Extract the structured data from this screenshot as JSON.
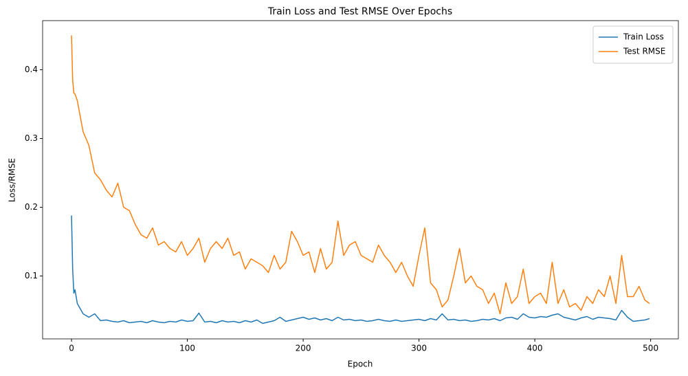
{
  "chart_data": {
    "type": "line",
    "title": "Train Loss and Test RMSE Over Epochs",
    "x_label": "Epoch",
    "y_label": "Loss/RMSE",
    "x": [
      0,
      1,
      2,
      3,
      5,
      10,
      15,
      20,
      25,
      30,
      35,
      40,
      45,
      50,
      55,
      60,
      65,
      70,
      75,
      80,
      85,
      90,
      95,
      100,
      105,
      110,
      115,
      120,
      125,
      130,
      135,
      140,
      145,
      150,
      155,
      160,
      165,
      170,
      175,
      180,
      185,
      190,
      195,
      200,
      205,
      210,
      215,
      220,
      225,
      230,
      235,
      240,
      245,
      250,
      255,
      260,
      265,
      270,
      275,
      280,
      285,
      290,
      295,
      300,
      305,
      310,
      315,
      320,
      325,
      330,
      335,
      340,
      345,
      350,
      355,
      360,
      365,
      370,
      375,
      380,
      385,
      390,
      395,
      400,
      405,
      410,
      415,
      420,
      425,
      430,
      435,
      440,
      445,
      450,
      455,
      460,
      465,
      470,
      475,
      480,
      485,
      490,
      495,
      499
    ],
    "series": [
      {
        "name": "Train Loss",
        "color": "#1f77b4",
        "values": [
          0.188,
          0.11,
          0.075,
          0.08,
          0.06,
          0.045,
          0.04,
          0.045,
          0.035,
          0.036,
          0.034,
          0.033,
          0.035,
          0.032,
          0.033,
          0.034,
          0.032,
          0.035,
          0.033,
          0.032,
          0.034,
          0.033,
          0.036,
          0.034,
          0.035,
          0.046,
          0.033,
          0.034,
          0.032,
          0.035,
          0.033,
          0.034,
          0.032,
          0.035,
          0.033,
          0.036,
          0.031,
          0.033,
          0.035,
          0.04,
          0.034,
          0.036,
          0.038,
          0.04,
          0.037,
          0.039,
          0.036,
          0.038,
          0.035,
          0.04,
          0.036,
          0.037,
          0.035,
          0.036,
          0.034,
          0.035,
          0.037,
          0.035,
          0.034,
          0.036,
          0.034,
          0.035,
          0.036,
          0.037,
          0.035,
          0.038,
          0.036,
          0.045,
          0.036,
          0.037,
          0.035,
          0.036,
          0.034,
          0.035,
          0.037,
          0.036,
          0.038,
          0.035,
          0.039,
          0.04,
          0.037,
          0.045,
          0.04,
          0.039,
          0.041,
          0.04,
          0.043,
          0.045,
          0.04,
          0.038,
          0.036,
          0.039,
          0.041,
          0.037,
          0.04,
          0.039,
          0.038,
          0.036,
          0.05,
          0.04,
          0.034,
          0.035,
          0.036,
          0.038
        ]
      },
      {
        "name": "Test RMSE",
        "color": "#ff7f0e",
        "values": [
          0.45,
          0.385,
          0.366,
          0.365,
          0.355,
          0.31,
          0.29,
          0.25,
          0.24,
          0.225,
          0.215,
          0.235,
          0.2,
          0.195,
          0.175,
          0.16,
          0.155,
          0.17,
          0.145,
          0.15,
          0.14,
          0.135,
          0.15,
          0.13,
          0.14,
          0.155,
          0.12,
          0.14,
          0.15,
          0.14,
          0.155,
          0.13,
          0.135,
          0.11,
          0.125,
          0.12,
          0.115,
          0.105,
          0.13,
          0.11,
          0.12,
          0.165,
          0.15,
          0.13,
          0.135,
          0.105,
          0.14,
          0.11,
          0.12,
          0.18,
          0.13,
          0.145,
          0.15,
          0.13,
          0.125,
          0.12,
          0.145,
          0.13,
          0.12,
          0.105,
          0.12,
          0.1,
          0.085,
          0.13,
          0.17,
          0.09,
          0.08,
          0.055,
          0.065,
          0.1,
          0.14,
          0.09,
          0.1,
          0.085,
          0.08,
          0.06,
          0.075,
          0.045,
          0.09,
          0.06,
          0.07,
          0.11,
          0.06,
          0.07,
          0.075,
          0.06,
          0.12,
          0.06,
          0.08,
          0.055,
          0.06,
          0.05,
          0.07,
          0.06,
          0.08,
          0.07,
          0.1,
          0.06,
          0.13,
          0.07,
          0.07,
          0.085,
          0.065,
          0.06
        ]
      }
    ],
    "xlim": [
      -24.95,
      523.95
    ],
    "xticks": [
      0,
      100,
      200,
      300,
      400,
      500
    ],
    "ylim": [
      0.0085,
      0.4715
    ],
    "yticks": [
      0.1,
      0.2,
      0.3,
      0.4
    ],
    "legend": "upper right",
    "grid": false
  }
}
